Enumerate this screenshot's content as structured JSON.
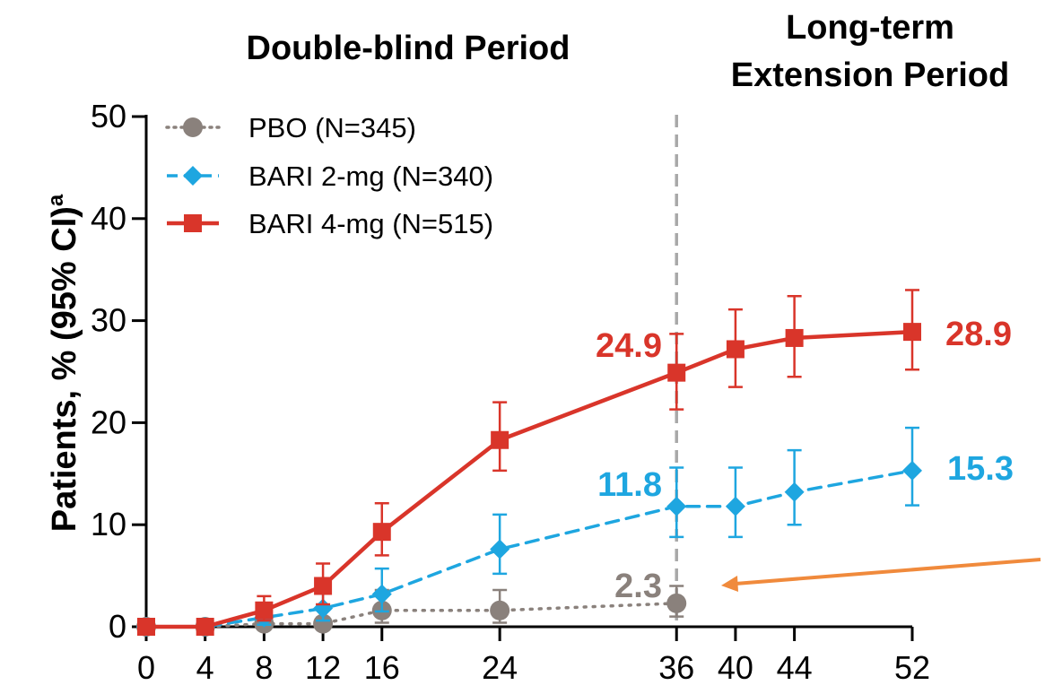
{
  "chart_data": {
    "type": "line",
    "title": "",
    "period_headers": {
      "left": "Double-blind Period",
      "right_line1": "Long-term",
      "right_line2": "Extension Period"
    },
    "xlabel": "",
    "ylabel": "Patients, % (95% CI)",
    "ylabel_superscript": "a",
    "ylim": [
      0,
      50
    ],
    "yticks": [
      "0",
      "10",
      "20",
      "30",
      "40",
      "50"
    ],
    "xticks": [
      "0",
      "4",
      "8",
      "12",
      "16",
      "24",
      "36",
      "40",
      "44",
      "52"
    ],
    "divider_x": 36,
    "series": [
      {
        "name": "PBO (N=345)",
        "color": "#8a817c",
        "style": "dotted",
        "marker": "circle",
        "x": [
          0,
          4,
          8,
          12,
          16,
          24,
          36
        ],
        "y": [
          0,
          0,
          0.3,
          0.3,
          1.6,
          1.6,
          2.3
        ],
        "err_low": [
          0,
          0,
          0,
          0,
          0.4,
          0.4,
          1.0
        ],
        "err_high": [
          0,
          0,
          0.9,
          0.9,
          3.6,
          3.6,
          4.0
        ],
        "end_label": "2.3",
        "end_label_x": 36,
        "end_label_y": 2.3
      },
      {
        "name": "BARI 2-mg (N=340)",
        "color": "#1ea6e0",
        "style": "dashed",
        "marker": "diamond",
        "x": [
          0,
          4,
          8,
          12,
          16,
          24,
          36,
          40,
          44,
          52
        ],
        "y": [
          0,
          0,
          0.9,
          1.8,
          3.2,
          7.6,
          11.8,
          11.8,
          13.2,
          15.3
        ],
        "err_low": [
          0,
          0,
          0.2,
          0.6,
          1.5,
          5.2,
          8.8,
          8.8,
          10.0,
          11.9
        ],
        "err_high": [
          0,
          0,
          2.3,
          3.7,
          5.7,
          11.0,
          15.6,
          15.6,
          17.3,
          19.5
        ],
        "end_label": "15.3",
        "mid_label": "11.8"
      },
      {
        "name": "BARI 4-mg (N=515)",
        "color": "#d9352a",
        "style": "solid",
        "marker": "square",
        "x": [
          0,
          4,
          8,
          12,
          16,
          24,
          36,
          40,
          44,
          52
        ],
        "y": [
          0,
          0,
          1.6,
          4.0,
          9.3,
          18.3,
          24.9,
          27.2,
          28.3,
          28.9
        ],
        "err_low": [
          0,
          0,
          0.6,
          2.2,
          7.0,
          15.3,
          21.3,
          23.5,
          24.5,
          25.2
        ],
        "err_high": [
          0,
          0,
          3.0,
          6.2,
          12.1,
          22.0,
          28.7,
          31.1,
          32.4,
          33.0
        ],
        "end_label": "28.9",
        "mid_label": "24.9"
      }
    ],
    "arrow_color": "#f08a3c"
  }
}
